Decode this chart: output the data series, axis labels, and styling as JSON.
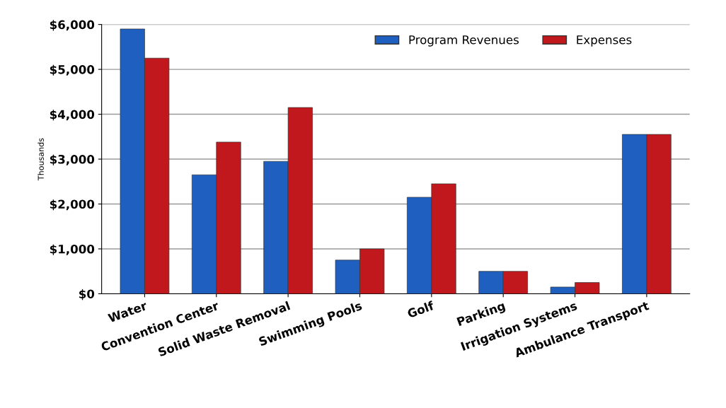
{
  "chart_data": {
    "type": "bar",
    "ylabel": "Thousands",
    "categories": [
      "Water",
      "Convention Center",
      "Solid Waste Removal",
      "Swimming Pools",
      "Golf",
      "Parking",
      "Irrigation Systems",
      "Ambulance Transport"
    ],
    "series": [
      {
        "name": "Program Revenues",
        "color": "#1f5fbf",
        "values": [
          5900,
          2650,
          2950,
          750,
          2150,
          500,
          150,
          3550
        ]
      },
      {
        "name": "Expenses",
        "color": "#c0181c",
        "values": [
          5250,
          3380,
          4150,
          1000,
          2450,
          500,
          250,
          3550
        ]
      }
    ],
    "ylim": [
      0,
      6000
    ],
    "yticks": [
      {
        "value": 0,
        "label": "$0"
      },
      {
        "value": 1000,
        "label": "$1,000"
      },
      {
        "value": 2000,
        "label": "$2,000"
      },
      {
        "value": 3000,
        "label": "$3,000"
      },
      {
        "value": 4000,
        "label": "$4,000"
      },
      {
        "value": 5000,
        "label": "$5,000"
      },
      {
        "value": 6000,
        "label": "$6,000"
      }
    ],
    "grid": "y",
    "legend": "top right"
  }
}
